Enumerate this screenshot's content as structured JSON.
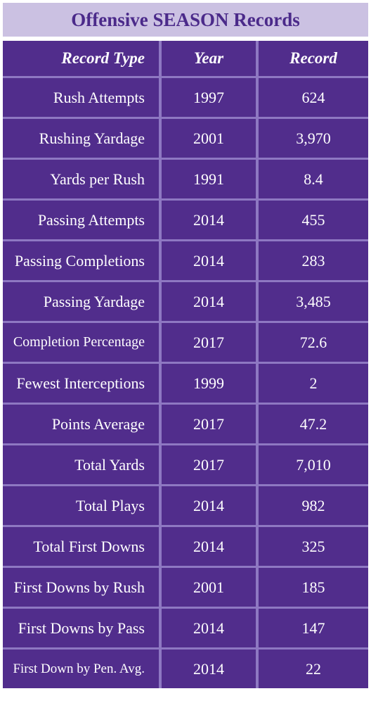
{
  "title": "Offensive SEASON Records",
  "table": {
    "header": [
      "Record Type",
      "Year",
      "Record"
    ],
    "rows": [
      [
        "Rush Attempts",
        "1997",
        "624"
      ],
      [
        "Rushing Yardage",
        "2001",
        "3,970"
      ],
      [
        "Yards per Rush",
        "1991",
        "8.4"
      ],
      [
        "Passing Attempts",
        "2014",
        "455"
      ],
      [
        "Passing Completions",
        "2014",
        "283"
      ],
      [
        "Passing Yardage",
        "2014",
        "3,485"
      ],
      [
        "Completion Percentage",
        "2017",
        "72.6"
      ],
      [
        "Fewest Interceptions",
        "1999",
        "2"
      ],
      [
        "Points Average",
        "2017",
        "47.2"
      ],
      [
        "Total Yards",
        "2017",
        "7,010"
      ],
      [
        "Total Plays",
        "2014",
        "982"
      ],
      [
        "Total First Downs",
        "2014",
        "325"
      ],
      [
        "First Downs by Rush",
        "2001",
        "185"
      ],
      [
        "First Downs by Pass",
        "2014",
        "147"
      ],
      [
        "First Down by Pen. Avg.",
        "2014",
        "22"
      ]
    ]
  }
}
